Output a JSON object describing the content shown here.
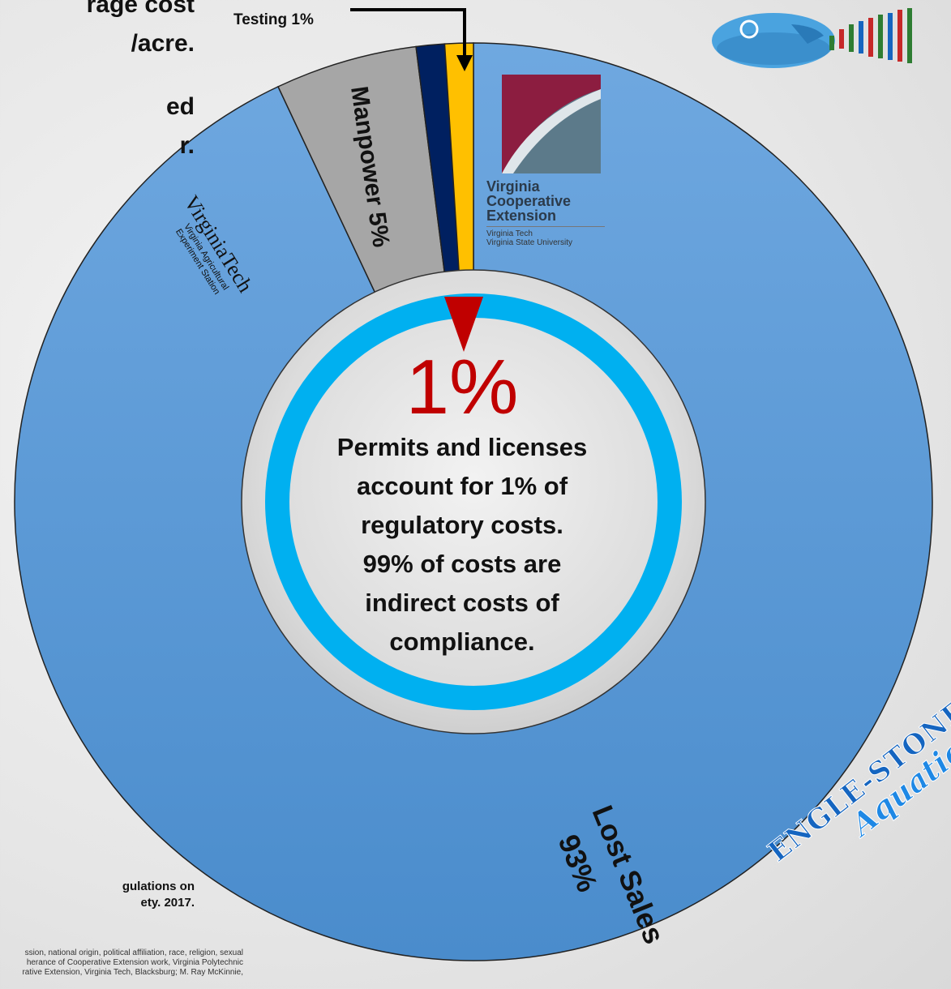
{
  "left_text": {
    "lines": [
      "rage cost",
      "/acre.",
      "ed",
      "r."
    ]
  },
  "reference": {
    "lines": [
      "gulations on",
      "ety. 2017."
    ]
  },
  "fine_print": {
    "lines": [
      "ssion, national origin, political affiliation, race, religion, sexual",
      "herance of Cooperative Extension work, Virginia Polytechnic",
      "rative Extension, Virginia Tech, Blacksburg; M. Ray McKinnie,"
    ]
  },
  "chart_data": {
    "type": "pie",
    "slices": [
      {
        "label": "Lost Sales 93%",
        "value": 93,
        "color": "#5b9bd5"
      },
      {
        "label": "Manpower 5%",
        "value": 5,
        "color": "#a6a6a6"
      },
      {
        "label": "",
        "value": 1,
        "color": "#002060"
      },
      {
        "label": "Testing 1%",
        "value": 1,
        "color": "#ffc000"
      }
    ],
    "center": {
      "big_value": "1%",
      "message_lines": [
        "Permits and licenses",
        "account for 1% of",
        "regulatory costs.",
        "99% of costs are",
        "indirect costs of",
        "compliance."
      ]
    }
  },
  "logos": {
    "vce": {
      "lines": [
        "Virginia",
        "Cooperative",
        "Extension"
      ],
      "sub_lines": [
        "Virginia Tech",
        "Virginia State University"
      ]
    },
    "virginia_tech": {
      "main": "VirginiaTech",
      "sub_lines": [
        "Virginia Agricultural",
        "Experiment Station"
      ]
    },
    "engle_stone": {
      "line1": "ENGLE-STONE",
      "line2": "Aquatics"
    }
  },
  "colors": {
    "accent_ring": "#00b0f0",
    "pointer": "#c00000"
  }
}
